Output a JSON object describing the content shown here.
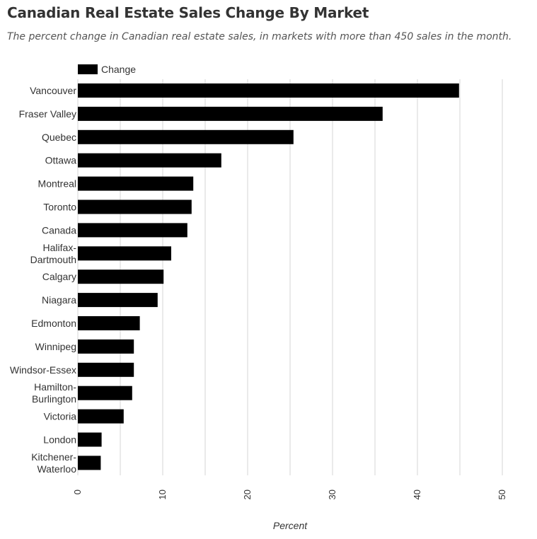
{
  "chart_data": {
    "type": "bar",
    "orientation": "horizontal",
    "title": "Canadian Real Estate Sales Change By Market",
    "subtitle": "The percent change in Canadian real estate sales, in markets with more than 450 sales in the month.",
    "xlabel": "Percent",
    "ylabel": "",
    "xlim": [
      0,
      50
    ],
    "xticks": [
      0,
      10,
      20,
      30,
      40,
      50
    ],
    "grid": true,
    "legend_position": "top-left",
    "categories": [
      "Vancouver",
      "Fraser Valley",
      "Quebec",
      "Ottawa",
      "Montreal",
      "Toronto",
      "Canada",
      "Halifax-Dartmouth",
      "Calgary",
      "Niagara",
      "Edmonton",
      "Winnipeg",
      "Windsor-Essex",
      "Hamilton-Burlington",
      "Victoria",
      "London",
      "Kitchener-Waterloo"
    ],
    "category_lines": [
      [
        "Vancouver"
      ],
      [
        "Fraser Valley"
      ],
      [
        "Quebec"
      ],
      [
        "Ottawa"
      ],
      [
        "Montreal"
      ],
      [
        "Toronto"
      ],
      [
        "Canada"
      ],
      [
        "Halifax-",
        "Dartmouth"
      ],
      [
        "Calgary"
      ],
      [
        "Niagara"
      ],
      [
        "Edmonton"
      ],
      [
        "Winnipeg"
      ],
      [
        "Windsor-Essex"
      ],
      [
        "Hamilton-",
        "Burlington"
      ],
      [
        "Victoria"
      ],
      [
        "London"
      ],
      [
        "Kitchener-",
        "Waterloo"
      ]
    ],
    "series": [
      {
        "name": "Change",
        "color": "#000000",
        "values": [
          44.9,
          35.9,
          25.4,
          16.9,
          13.6,
          13.4,
          12.9,
          11.0,
          10.1,
          9.4,
          7.3,
          6.6,
          6.6,
          6.4,
          5.4,
          2.8,
          2.7
        ]
      }
    ]
  }
}
